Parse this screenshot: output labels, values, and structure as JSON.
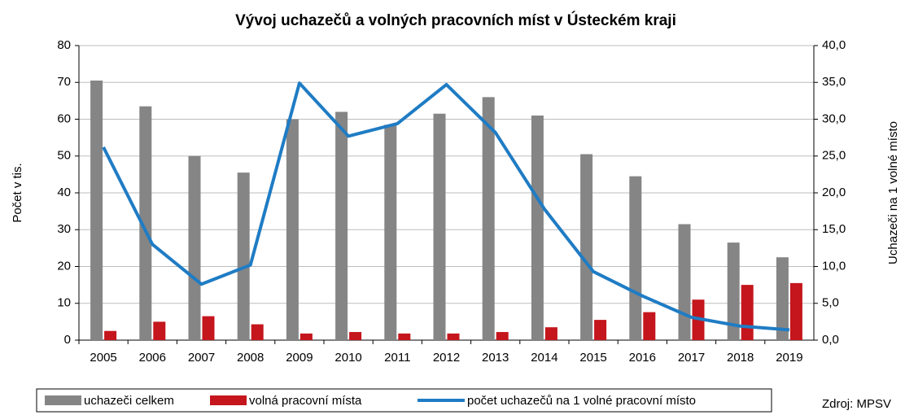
{
  "chart_data": {
    "type": "bar-line",
    "title": "Vývoj uchazečů a volných pracovních míst v Ústeckém kraji",
    "ylabel": "Počet v tis.",
    "y2label": "Uchazeči na 1 volné místo",
    "source": "Zdroj: MPSV",
    "categories": [
      "2005",
      "2006",
      "2007",
      "2008",
      "2009",
      "2010",
      "2011",
      "2012",
      "2013",
      "2014",
      "2015",
      "2016",
      "2017",
      "2018",
      "2019"
    ],
    "series": [
      {
        "name": "uchazeči celkem",
        "type": "bar",
        "color": "#858585",
        "values": [
          70.5,
          63.5,
          50,
          45.5,
          60,
          62,
          58.5,
          61.5,
          66,
          61,
          50.5,
          44.5,
          31.5,
          26.5,
          22.5
        ]
      },
      {
        "name": "volná pracovní místa",
        "type": "bar",
        "color": "#c4161c",
        "values": [
          2.5,
          5,
          6.5,
          4.3,
          1.8,
          2.2,
          1.8,
          1.8,
          2.2,
          3.5,
          5.5,
          7.6,
          11,
          15,
          15.5
        ]
      },
      {
        "name": "počet uchazečů na 1 volné pracovní místo",
        "type": "line",
        "axis": "y2",
        "color": "#1f7cc4",
        "values": [
          26.2,
          13,
          7.6,
          10.2,
          34.9,
          27.7,
          29.4,
          34.7,
          28.2,
          17.8,
          9.3,
          6,
          3.1,
          1.9,
          1.4
        ]
      }
    ],
    "ylim": [
      0,
      80
    ],
    "yticks": [
      0,
      10,
      20,
      30,
      40,
      50,
      60,
      70,
      80
    ],
    "y2lim": [
      0,
      40
    ],
    "y2ticks": [
      {
        "value": 0,
        "label": "0,0"
      },
      {
        "value": 5,
        "label": "5,0"
      },
      {
        "value": 10,
        "label": "10,0"
      },
      {
        "value": 15,
        "label": "15,0"
      },
      {
        "value": 20,
        "label": "20,0"
      },
      {
        "value": 25,
        "label": "25,0"
      },
      {
        "value": 30,
        "label": "30,0"
      },
      {
        "value": 35,
        "label": "35,0"
      },
      {
        "value": 40,
        "label": "40,0"
      }
    ],
    "grid": true
  }
}
